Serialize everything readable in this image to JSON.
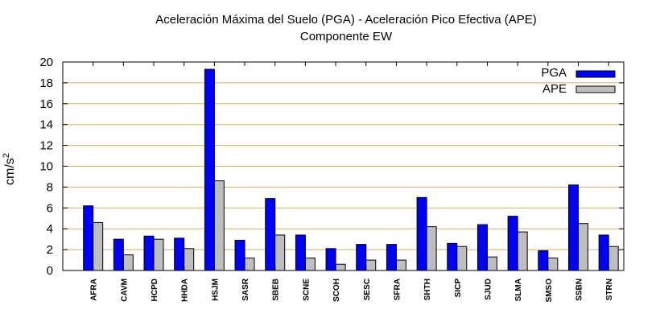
{
  "chart_data": {
    "type": "bar",
    "title": "Aceleración Máxima del Suelo (PGA) -  Aceleración Pico Efectiva (APE)",
    "subtitle": "Componente EW",
    "ylabel": "cm/s",
    "ylabel_sup": "2",
    "xlabel": "",
    "ylim": [
      0,
      20
    ],
    "yticks": [
      0,
      2,
      4,
      6,
      8,
      10,
      12,
      14,
      16,
      18,
      20
    ],
    "grid": true,
    "legend_position": "top-right",
    "categories": [
      "AFRA",
      "CAVM",
      "HCPD",
      "HHDA",
      "HSJM",
      "SASR",
      "SBEB",
      "SCNE",
      "SCOH",
      "SESC",
      "SFRA",
      "SHTH",
      "SICP",
      "SJUD",
      "SLMA",
      "SMSO",
      "SSBN",
      "STRN"
    ],
    "series": [
      {
        "name": "PGA",
        "color": "#0000ff",
        "values": [
          6.2,
          3.0,
          3.3,
          3.1,
          19.3,
          2.9,
          6.9,
          3.4,
          2.1,
          2.5,
          2.5,
          7.0,
          2.6,
          4.4,
          5.2,
          1.9,
          8.2,
          3.4
        ]
      },
      {
        "name": "APE",
        "color": "#bebebe",
        "values": [
          4.6,
          1.5,
          3.0,
          2.1,
          8.6,
          1.2,
          3.4,
          1.2,
          0.6,
          1.0,
          1.0,
          4.2,
          2.3,
          1.3,
          3.7,
          1.2,
          4.5,
          2.3
        ]
      }
    ],
    "gridline_color": "#dbb14a"
  }
}
